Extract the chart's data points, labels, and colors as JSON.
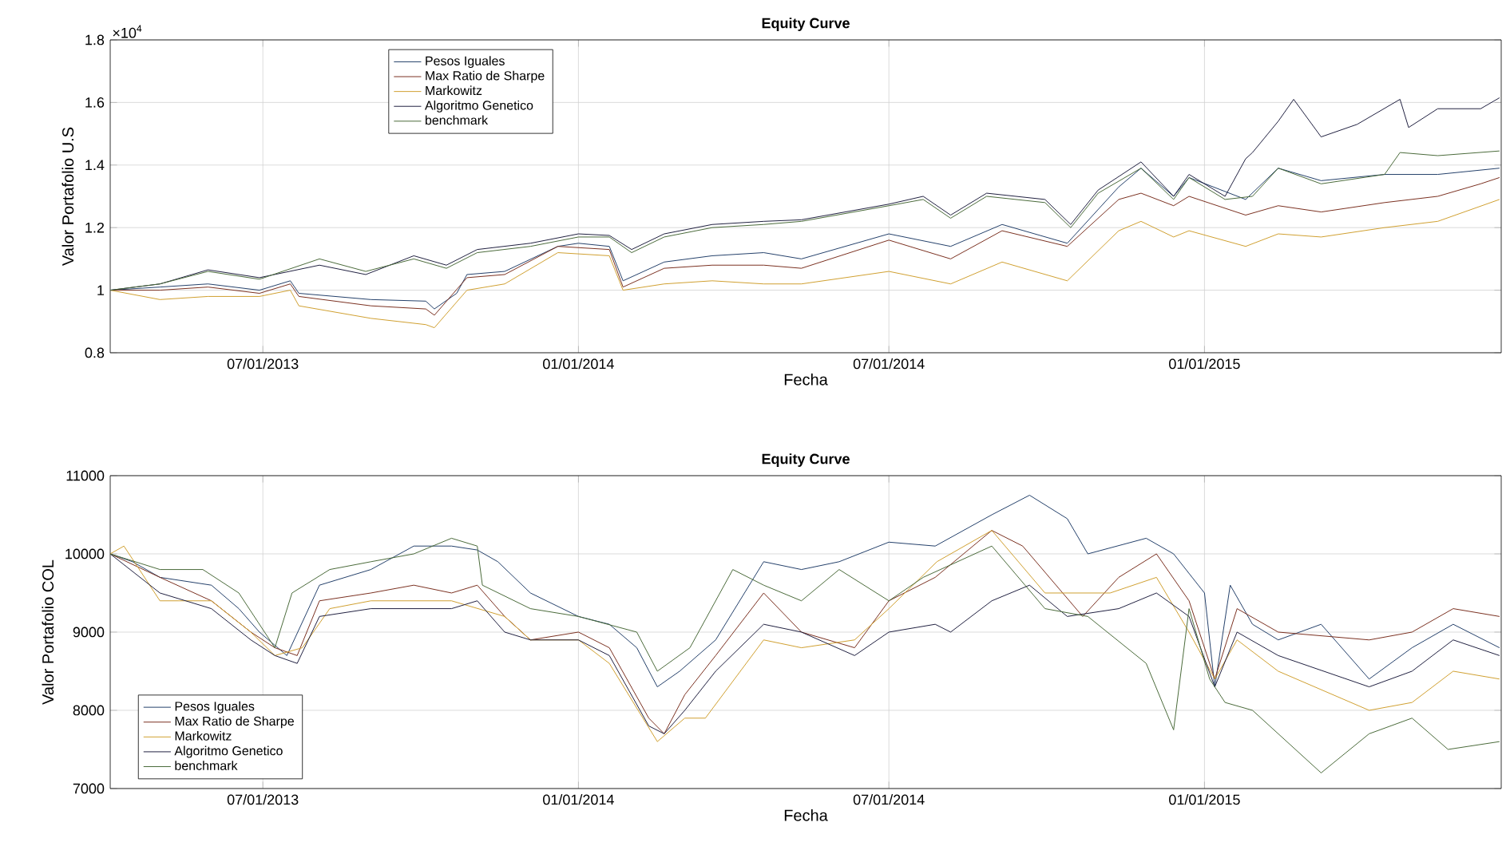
{
  "chart_data": [
    {
      "type": "line",
      "title": "Equity Curve",
      "xlabel": "Fecha",
      "ylabel": "Valor Portafolio U.S",
      "annotations": [
        "×10$^{4}$"
      ],
      "xlim": [
        "2013-04-03",
        "2015-06-23"
      ],
      "ylim": [
        0.8,
        1.8
      ],
      "xticks": [
        {
          "value": "2013-07-01",
          "label": "07/01/2013"
        },
        {
          "value": "2014-01-01",
          "label": "01/01/2014"
        },
        {
          "value": "2014-07-01",
          "label": "07/01/2014"
        },
        {
          "value": "2015-01-01",
          "label": "01/01/2015"
        }
      ],
      "yticks": [
        0.8,
        1,
        1.2,
        1.4,
        1.6,
        1.8
      ],
      "grid": true,
      "legend": "top left",
      "line_style": "solid",
      "series": [
        {
          "name": "Pesos Iguales",
          "color": "#24406a",
          "x": [
            "2013-04-03",
            "2013-05-02",
            "2013-05-30",
            "2013-06-29",
            "2013-07-17",
            "2013-07-22",
            "2013-09-02",
            "2013-10-04",
            "2013-10-09",
            "2013-10-22",
            "2013-10-28",
            "2013-11-19",
            "2013-12-20",
            "2014-01-01",
            "2014-01-19",
            "2014-01-27",
            "2014-02-20",
            "2014-03-20",
            "2014-04-19",
            "2014-05-11",
            "2014-07-01",
            "2014-08-06",
            "2014-09-05",
            "2014-10-13",
            "2014-11-12",
            "2014-11-25",
            "2014-12-14",
            "2014-12-23",
            "2015-01-25",
            "2015-02-13",
            "2015-03-10",
            "2015-04-16",
            "2015-05-17",
            "2015-06-22"
          ],
          "values": [
            1.0,
            1.01,
            1.02,
            1.0,
            1.03,
            0.99,
            0.97,
            0.965,
            0.94,
            0.99,
            1.05,
            1.06,
            1.14,
            1.15,
            1.14,
            1.03,
            1.09,
            1.11,
            1.12,
            1.1,
            1.18,
            1.14,
            1.21,
            1.15,
            1.33,
            1.39,
            1.3,
            1.36,
            1.29,
            1.39,
            1.35,
            1.37,
            1.37,
            1.39
          ]
        },
        {
          "name": "Max Ratio de Sharpe",
          "color": "#7a3020",
          "x": [
            "2013-04-03",
            "2013-05-02",
            "2013-05-30",
            "2013-06-29",
            "2013-07-17",
            "2013-07-22",
            "2013-09-02",
            "2013-10-04",
            "2013-10-09",
            "2013-10-28",
            "2013-11-19",
            "2013-12-20",
            "2014-01-19",
            "2014-01-27",
            "2014-02-20",
            "2014-03-20",
            "2014-04-19",
            "2014-05-11",
            "2014-07-01",
            "2014-08-06",
            "2014-09-05",
            "2014-10-13",
            "2014-11-12",
            "2014-11-25",
            "2014-12-14",
            "2014-12-23",
            "2015-01-25",
            "2015-02-13",
            "2015-03-10",
            "2015-04-16",
            "2015-05-17",
            "2015-06-11",
            "2015-06-22"
          ],
          "values": [
            1.0,
            1.0,
            1.01,
            0.99,
            1.02,
            0.98,
            0.95,
            0.94,
            0.92,
            1.04,
            1.05,
            1.14,
            1.13,
            1.01,
            1.07,
            1.08,
            1.08,
            1.07,
            1.16,
            1.1,
            1.19,
            1.14,
            1.29,
            1.31,
            1.27,
            1.3,
            1.24,
            1.27,
            1.25,
            1.28,
            1.3,
            1.34,
            1.36
          ]
        },
        {
          "name": "Markowitz",
          "color": "#d0a030",
          "x": [
            "2013-04-03",
            "2013-05-02",
            "2013-05-30",
            "2013-06-29",
            "2013-07-17",
            "2013-07-22",
            "2013-09-02",
            "2013-10-04",
            "2013-10-09",
            "2013-10-28",
            "2013-11-19",
            "2013-12-20",
            "2014-01-19",
            "2014-01-27",
            "2014-02-20",
            "2014-03-20",
            "2014-04-19",
            "2014-05-11",
            "2014-07-01",
            "2014-08-06",
            "2014-09-05",
            "2014-10-13",
            "2014-11-12",
            "2014-11-25",
            "2014-12-14",
            "2014-12-23",
            "2015-01-25",
            "2015-02-13",
            "2015-03-10",
            "2015-04-16",
            "2015-05-17",
            "2015-06-22"
          ],
          "values": [
            1.0,
            0.97,
            0.98,
            0.98,
            1.0,
            0.95,
            0.91,
            0.89,
            0.88,
            1.0,
            1.02,
            1.12,
            1.11,
            1.0,
            1.02,
            1.03,
            1.02,
            1.02,
            1.06,
            1.02,
            1.09,
            1.03,
            1.19,
            1.22,
            1.17,
            1.19,
            1.14,
            1.18,
            1.17,
            1.2,
            1.22,
            1.29
          ]
        },
        {
          "name": "Algoritmo Genetico",
          "color": "#202040",
          "x": [
            "2013-04-03",
            "2013-05-02",
            "2013-05-30",
            "2013-06-29",
            "2013-08-03",
            "2013-08-30",
            "2013-09-27",
            "2013-10-16",
            "2013-11-03",
            "2013-12-04",
            "2014-01-01",
            "2014-01-19",
            "2014-02-01",
            "2014-02-20",
            "2014-03-20",
            "2014-04-19",
            "2014-05-11",
            "2014-07-01",
            "2014-07-21",
            "2014-08-06",
            "2014-08-27",
            "2014-09-30",
            "2014-10-15",
            "2014-10-31",
            "2014-11-25",
            "2014-12-14",
            "2014-12-23",
            "2015-01-13",
            "2015-01-25",
            "2015-01-29",
            "2015-02-13",
            "2015-02-22",
            "2015-03-10",
            "2015-03-31",
            "2015-04-25",
            "2015-04-30",
            "2015-05-17",
            "2015-06-11",
            "2015-06-22"
          ],
          "values": [
            1.0,
            1.02,
            1.065,
            1.04,
            1.08,
            1.05,
            1.11,
            1.08,
            1.13,
            1.15,
            1.18,
            1.175,
            1.13,
            1.18,
            1.21,
            1.22,
            1.225,
            1.275,
            1.3,
            1.24,
            1.31,
            1.29,
            1.21,
            1.32,
            1.41,
            1.3,
            1.37,
            1.3,
            1.42,
            1.44,
            1.54,
            1.61,
            1.49,
            1.53,
            1.61,
            1.52,
            1.58,
            1.58,
            1.615
          ]
        },
        {
          "name": "benchmark",
          "color": "#4a6a3a",
          "x": [
            "2013-04-03",
            "2013-05-02",
            "2013-05-30",
            "2013-06-29",
            "2013-08-03",
            "2013-08-30",
            "2013-09-27",
            "2013-10-16",
            "2013-11-03",
            "2013-12-04",
            "2014-01-01",
            "2014-01-19",
            "2014-02-01",
            "2014-02-20",
            "2014-03-20",
            "2014-04-19",
            "2014-05-11",
            "2014-07-01",
            "2014-07-21",
            "2014-08-06",
            "2014-08-27",
            "2014-09-30",
            "2014-10-15",
            "2014-10-31",
            "2014-11-25",
            "2014-12-14",
            "2014-12-23",
            "2015-01-13",
            "2015-01-29",
            "2015-02-13",
            "2015-03-10",
            "2015-04-16",
            "2015-04-25",
            "2015-05-17",
            "2015-06-22"
          ],
          "values": [
            1.0,
            1.02,
            1.06,
            1.035,
            1.1,
            1.06,
            1.1,
            1.07,
            1.12,
            1.14,
            1.17,
            1.17,
            1.12,
            1.17,
            1.2,
            1.21,
            1.22,
            1.27,
            1.29,
            1.23,
            1.3,
            1.28,
            1.2,
            1.31,
            1.39,
            1.29,
            1.36,
            1.29,
            1.3,
            1.39,
            1.34,
            1.37,
            1.44,
            1.43,
            1.445
          ]
        }
      ]
    },
    {
      "type": "line",
      "title": "Equity Curve",
      "xlabel": "Fecha",
      "ylabel": "Valor Portafolio COL",
      "xlim": [
        "2013-04-03",
        "2015-06-23"
      ],
      "ylim": [
        7000,
        11000
      ],
      "xticks": [
        {
          "value": "2013-07-01",
          "label": "07/01/2013"
        },
        {
          "value": "2014-01-01",
          "label": "01/01/2014"
        },
        {
          "value": "2014-07-01",
          "label": "07/01/2014"
        },
        {
          "value": "2015-01-01",
          "label": "01/01/2015"
        }
      ],
      "yticks": [
        7000,
        8000,
        9000,
        10000,
        11000
      ],
      "grid": true,
      "legend": "bottom left",
      "line_style": "solid",
      "series": [
        {
          "name": "Pesos Iguales",
          "color": "#24406a",
          "x": [
            "2013-04-03",
            "2013-04-16",
            "2013-05-02",
            "2013-06-01",
            "2013-06-17",
            "2013-06-29",
            "2013-07-15",
            "2013-08-03",
            "2013-08-18",
            "2013-09-02",
            "2013-09-27",
            "2013-10-19",
            "2013-11-03",
            "2013-11-15",
            "2013-12-04",
            "2014-01-01",
            "2014-01-19",
            "2014-02-04",
            "2014-02-16",
            "2014-03-01",
            "2014-03-22",
            "2014-04-19",
            "2014-05-11",
            "2014-06-02",
            "2014-07-01",
            "2014-07-28",
            "2014-08-30",
            "2014-09-21",
            "2014-10-13",
            "2014-10-25",
            "2014-11-28",
            "2014-12-14",
            "2015-01-01",
            "2015-01-07",
            "2015-01-16",
            "2015-01-29",
            "2015-02-13",
            "2015-03-10",
            "2015-04-07",
            "2015-05-02",
            "2015-05-26",
            "2015-06-22"
          ],
          "values": [
            10000,
            9900,
            9700,
            9600,
            9300,
            9000,
            8700,
            9600,
            9700,
            9800,
            10100,
            10100,
            10050,
            9900,
            9500,
            9200,
            9100,
            8800,
            8300,
            8500,
            8900,
            9900,
            9800,
            9900,
            10150,
            10100,
            10500,
            10750,
            10450,
            10000,
            10200,
            10000,
            9500,
            8300,
            9600,
            9100,
            8900,
            9100,
            8400,
            8800,
            9100,
            8800
          ]
        },
        {
          "name": "Max Ratio de Sharpe",
          "color": "#7a3020",
          "x": [
            "2013-04-03",
            "2013-05-02",
            "2013-06-01",
            "2013-06-24",
            "2013-07-08",
            "2013-07-21",
            "2013-08-03",
            "2013-09-02",
            "2013-09-27",
            "2013-10-19",
            "2013-11-03",
            "2013-11-19",
            "2013-12-04",
            "2014-01-01",
            "2014-01-19",
            "2014-02-11",
            "2014-02-20",
            "2014-03-04",
            "2014-03-22",
            "2014-04-19",
            "2014-05-11",
            "2014-06-11",
            "2014-07-01",
            "2014-07-28",
            "2014-08-30",
            "2014-09-17",
            "2014-10-22",
            "2014-11-12",
            "2014-12-04",
            "2014-12-23",
            "2015-01-07",
            "2015-01-20",
            "2015-02-13",
            "2015-04-07",
            "2015-05-02",
            "2015-05-26",
            "2015-06-22"
          ],
          "values": [
            10000,
            9700,
            9400,
            9000,
            8800,
            8700,
            9400,
            9500,
            9600,
            9500,
            9600,
            9200,
            8900,
            9000,
            8800,
            7900,
            7700,
            8200,
            8700,
            9500,
            9000,
            8800,
            9400,
            9700,
            10300,
            10100,
            9200,
            9700,
            10000,
            9400,
            8400,
            9300,
            9000,
            8900,
            9000,
            9300,
            9200
          ]
        },
        {
          "name": "Markowitz",
          "color": "#d0a030",
          "x": [
            "2013-04-03",
            "2013-04-11",
            "2013-05-02",
            "2013-06-01",
            "2013-06-24",
            "2013-07-08",
            "2013-07-24",
            "2013-08-09",
            "2013-09-02",
            "2013-09-27",
            "2013-10-19",
            "2013-11-19",
            "2013-12-04",
            "2014-01-01",
            "2014-01-19",
            "2014-02-16",
            "2014-03-04",
            "2014-03-16",
            "2014-04-19",
            "2014-05-11",
            "2014-06-11",
            "2014-07-01",
            "2014-07-29",
            "2014-08-30",
            "2014-09-30",
            "2014-11-07",
            "2014-12-04",
            "2014-12-23",
            "2015-01-07",
            "2015-01-20",
            "2015-02-13",
            "2015-04-07",
            "2015-05-02",
            "2015-05-26",
            "2015-06-22"
          ],
          "values": [
            10000,
            10100,
            9400,
            9400,
            9000,
            8700,
            8800,
            9300,
            9400,
            9400,
            9400,
            9200,
            8900,
            8900,
            8600,
            7600,
            7900,
            7900,
            8900,
            8800,
            8900,
            9300,
            9900,
            10300,
            9500,
            9500,
            9700,
            9000,
            8400,
            8900,
            8500,
            8000,
            8100,
            8500,
            8400
          ]
        },
        {
          "name": "Algoritmo Genetico",
          "color": "#202040",
          "x": [
            "2013-04-03",
            "2013-05-02",
            "2013-06-01",
            "2013-06-24",
            "2013-07-08",
            "2013-07-21",
            "2013-08-03",
            "2013-09-02",
            "2013-09-27",
            "2013-10-19",
            "2013-11-03",
            "2013-11-19",
            "2013-12-04",
            "2014-01-01",
            "2014-01-19",
            "2014-02-11",
            "2014-02-20",
            "2014-03-04",
            "2014-03-22",
            "2014-04-19",
            "2014-05-11",
            "2014-06-11",
            "2014-07-01",
            "2014-07-28",
            "2014-08-06",
            "2014-08-30",
            "2014-09-21",
            "2014-10-13",
            "2014-11-12",
            "2014-12-04",
            "2014-12-23",
            "2015-01-07",
            "2015-01-20",
            "2015-02-13",
            "2015-04-07",
            "2015-05-02",
            "2015-05-26",
            "2015-06-22"
          ],
          "values": [
            10000,
            9500,
            9300,
            8900,
            8700,
            8600,
            9200,
            9300,
            9300,
            9300,
            9400,
            9000,
            8900,
            8900,
            8700,
            7800,
            7700,
            8000,
            8500,
            9100,
            9000,
            8700,
            9000,
            9100,
            9000,
            9400,
            9600,
            9200,
            9300,
            9500,
            9200,
            8300,
            9000,
            8700,
            8300,
            8500,
            8900,
            8700
          ]
        },
        {
          "name": "benchmark",
          "color": "#4a6a3a",
          "x": [
            "2013-04-03",
            "2013-05-02",
            "2013-05-27",
            "2013-06-17",
            "2013-07-08",
            "2013-07-18",
            "2013-08-09",
            "2013-09-02",
            "2013-09-27",
            "2013-10-19",
            "2013-11-03",
            "2013-11-06",
            "2013-12-04",
            "2014-01-01",
            "2014-02-04",
            "2014-02-16",
            "2014-03-07",
            "2014-04-01",
            "2014-04-19",
            "2014-05-11",
            "2014-06-02",
            "2014-07-01",
            "2014-07-21",
            "2014-08-30",
            "2014-09-30",
            "2014-10-25",
            "2014-11-28",
            "2014-12-14",
            "2014-12-23",
            "2015-01-04",
            "2015-01-13",
            "2015-01-29",
            "2015-03-10",
            "2015-04-07",
            "2015-05-02",
            "2015-05-23",
            "2015-06-22"
          ],
          "values": [
            10000,
            9800,
            9800,
            9500,
            8800,
            9500,
            9800,
            9900,
            10000,
            10200,
            10100,
            9600,
            9300,
            9200,
            9000,
            8500,
            8800,
            9800,
            9600,
            9400,
            9800,
            9400,
            9700,
            10100,
            9300,
            9200,
            8600,
            7750,
            9300,
            8400,
            8100,
            8000,
            7200,
            7700,
            7900,
            7500,
            7600
          ]
        }
      ]
    }
  ]
}
